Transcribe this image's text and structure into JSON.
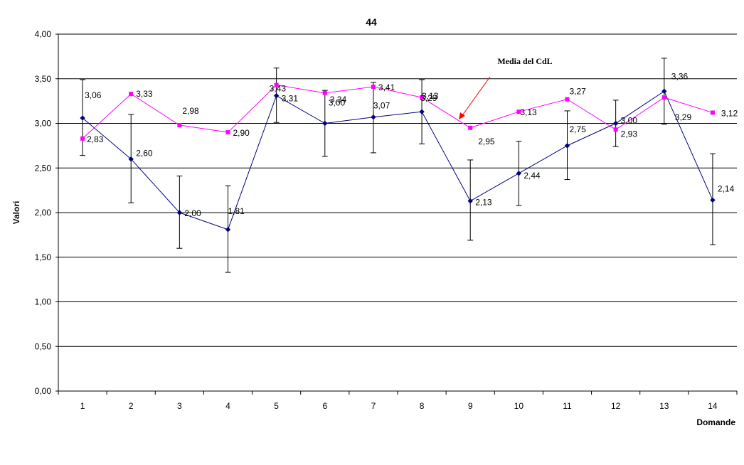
{
  "chart_data": {
    "type": "line",
    "title": "44",
    "xlabel": "Domande",
    "ylabel": "Valori",
    "categories": [
      "1",
      "2",
      "3",
      "4",
      "5",
      "6",
      "7",
      "8",
      "9",
      "10",
      "11",
      "12",
      "13",
      "14"
    ],
    "ylim": [
      0,
      4
    ],
    "ytick_step": 0.5,
    "ytick_labels": [
      "0,00",
      "0,50",
      "1,00",
      "1,50",
      "2,00",
      "2,50",
      "3,00",
      "3,50",
      "4,00"
    ],
    "grid": true,
    "series": [
      {
        "color": "#000080",
        "marker": "diamond",
        "values": [
          3.06,
          2.6,
          2.0,
          1.81,
          3.31,
          3.0,
          3.07,
          3.13,
          2.13,
          2.44,
          2.75,
          3.0,
          3.36,
          2.14
        ],
        "labels": [
          "3,06",
          "2,60",
          "2,00",
          "1,81",
          "3,31",
          "3,00",
          "3,07",
          "3,13",
          "2,13",
          "2,44",
          "2,75",
          "3,00",
          "3,36",
          "2,14"
        ],
        "error_high": [
          3.49,
          3.1,
          2.41,
          2.3,
          3.62,
          3.37,
          3.46,
          3.49,
          2.59,
          2.8,
          3.14,
          3.26,
          3.73,
          2.66
        ],
        "error_low": [
          2.64,
          2.11,
          1.6,
          1.33,
          3.01,
          2.63,
          2.67,
          2.77,
          1.69,
          2.08,
          2.37,
          2.74,
          2.99,
          1.64
        ]
      },
      {
        "color": "#ff00ff",
        "marker": "square",
        "values": [
          2.83,
          3.33,
          2.98,
          2.9,
          3.43,
          3.34,
          3.41,
          3.29,
          2.95,
          3.13,
          3.27,
          2.93,
          3.29,
          3.12
        ],
        "labels": [
          "2,83",
          "3,33",
          "2,98",
          "2,90",
          "3,43",
          "3,34",
          "3,41",
          "3,29",
          "2,95",
          "3,13",
          "3,27",
          "2,93",
          "3,29",
          "3,12"
        ]
      }
    ],
    "annotation": {
      "text": "Media del CdL",
      "arrow_color": "#ff0000"
    }
  }
}
